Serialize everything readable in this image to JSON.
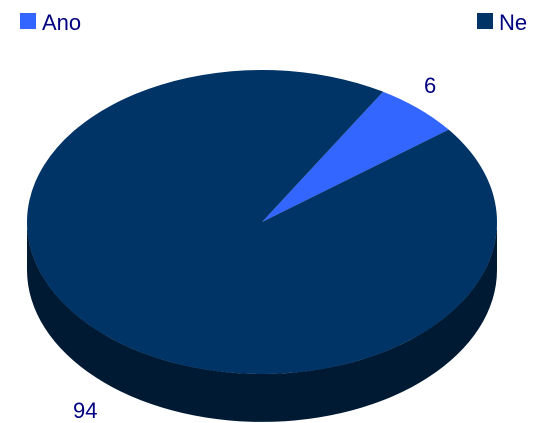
{
  "chart_data": {
    "type": "pie",
    "categories": [
      "Ano",
      "Ne"
    ],
    "values": [
      6,
      94
    ],
    "labels": [
      "6",
      "94"
    ],
    "colors": [
      "#3366ff",
      "#003366"
    ],
    "text_color": "#000080",
    "legend_position": "top",
    "style": "3d"
  }
}
